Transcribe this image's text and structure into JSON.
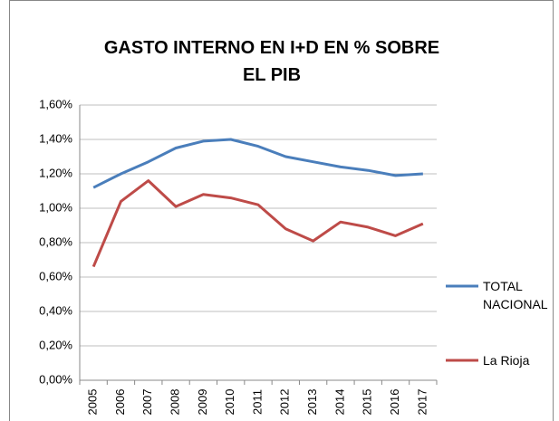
{
  "chart_data": {
    "type": "line",
    "title": "GASTO INTERNO EN I+D EN % SOBRE EL PIB",
    "categories": [
      "2005",
      "2006",
      "2007",
      "2008",
      "2009",
      "2010",
      "2011",
      "2012",
      "2013",
      "2014",
      "2015",
      "2016",
      "2017"
    ],
    "series": [
      {
        "name": "TOTAL NACIONAL",
        "color": "#4a7ebb",
        "values": [
          1.12,
          1.2,
          1.27,
          1.35,
          1.39,
          1.4,
          1.36,
          1.3,
          1.27,
          1.24,
          1.22,
          1.19,
          1.2
        ]
      },
      {
        "name": "La Rioja",
        "color": "#be4b48",
        "values": [
          0.66,
          1.04,
          1.16,
          1.01,
          1.08,
          1.06,
          1.02,
          0.88,
          0.81,
          0.92,
          0.89,
          0.84,
          0.91
        ]
      }
    ],
    "ylim": [
      0,
      1.6
    ],
    "yticks": [
      {
        "value": 0,
        "label": "0,00%"
      },
      {
        "value": 0.2,
        "label": "0,20%"
      },
      {
        "value": 0.4,
        "label": "0,40%"
      },
      {
        "value": 0.6,
        "label": "0,60%"
      },
      {
        "value": 0.8,
        "label": "0,80%"
      },
      {
        "value": 1.0,
        "label": "1,00%"
      },
      {
        "value": 1.2,
        "label": "1,20%"
      },
      {
        "value": 1.4,
        "label": "1,40%"
      },
      {
        "value": 1.6,
        "label": "1,60%"
      }
    ],
    "grid": true,
    "legend": "right"
  }
}
